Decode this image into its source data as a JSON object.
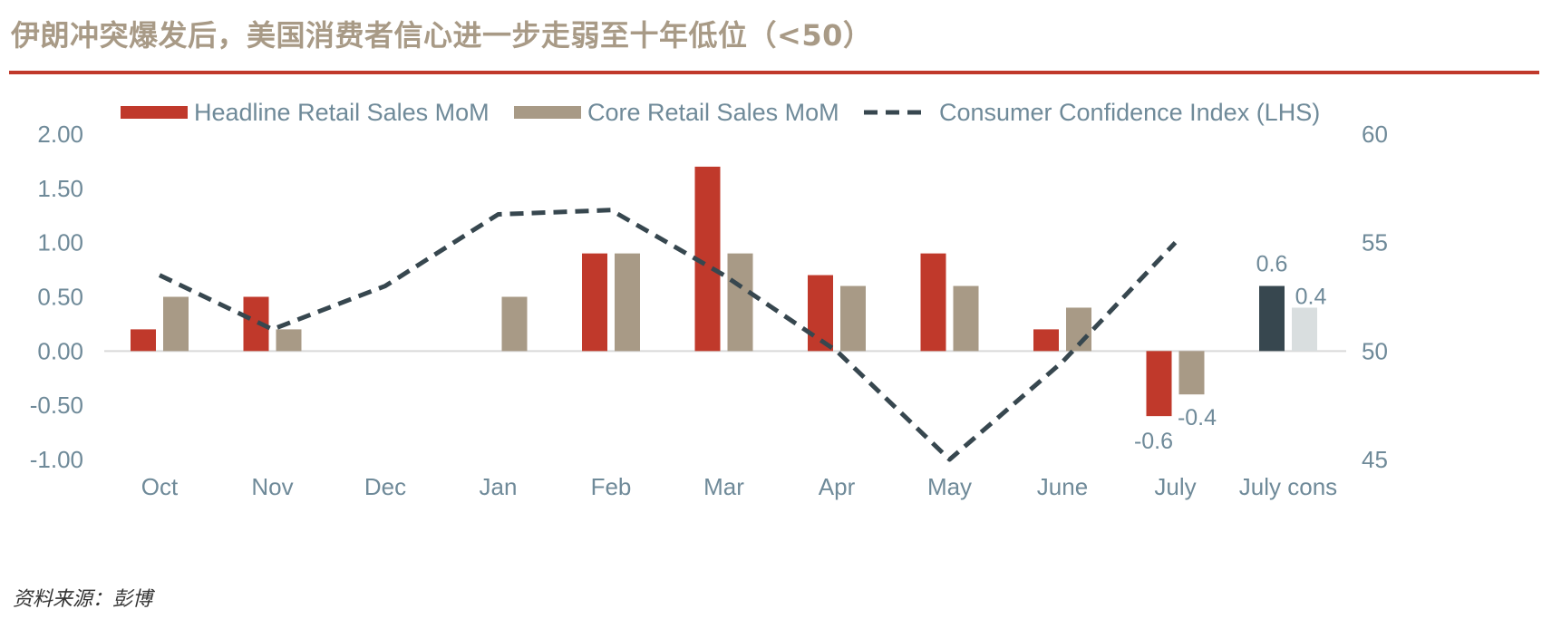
{
  "title": "伊朗冲突爆发后，美国消费者信心进一步走弱至十年低位（<50）",
  "source": "资料来源：彭博",
  "colors": {
    "title": "#a89a86",
    "rule": "#c0392b",
    "headline": "#c0392b",
    "core": "#a89a86",
    "confidence": "#37474f",
    "cons_headline": "#37474f",
    "cons_core": "#d9dedf",
    "axis_text": "#6f8a99",
    "zero_line": "#d9d9d9"
  },
  "chart_data": {
    "type": "bar",
    "categories": [
      "Oct",
      "Nov",
      "Dec",
      "Jan",
      "Feb",
      "Mar",
      "Apr",
      "May",
      "June",
      "July",
      "July cons"
    ],
    "series": [
      {
        "name": "Headline Retail Sales MoM",
        "type": "bar",
        "axis": "left",
        "values": [
          0.2,
          0.5,
          null,
          null,
          0.9,
          1.7,
          0.7,
          0.9,
          0.2,
          -0.6,
          0.6
        ]
      },
      {
        "name": "Core Retail Sales MoM",
        "type": "bar",
        "axis": "left",
        "values": [
          0.5,
          0.2,
          null,
          0.5,
          0.9,
          0.9,
          0.6,
          0.6,
          0.4,
          -0.4,
          0.4
        ]
      },
      {
        "name": "Consumer Confidence Index (LHS)",
        "type": "line",
        "style": "dashed",
        "axis": "right",
        "values": [
          53.5,
          51.0,
          53.0,
          56.3,
          56.5,
          53.5,
          50.0,
          45.0,
          49.5,
          55.0,
          null
        ]
      }
    ],
    "left_axis": {
      "ylim": [
        -1.0,
        2.0
      ],
      "ticks": [
        "2.00",
        "1.50",
        "1.00",
        "0.50",
        "0.00",
        "-0.50",
        "-1.00"
      ]
    },
    "right_axis": {
      "ylim": [
        45,
        60
      ],
      "ticks": [
        "60",
        "55",
        "50",
        "45"
      ]
    },
    "data_labels": [
      {
        "category": "July",
        "series": "Headline Retail Sales MoM",
        "text": "-0.6"
      },
      {
        "category": "July",
        "series": "Core Retail Sales MoM",
        "text": "-0.4"
      },
      {
        "category": "July cons",
        "series": "Headline Retail Sales MoM",
        "text": "0.6"
      },
      {
        "category": "July cons",
        "series": "Core Retail Sales MoM",
        "text": "0.4"
      }
    ],
    "legend_position": "top",
    "grid": false
  }
}
